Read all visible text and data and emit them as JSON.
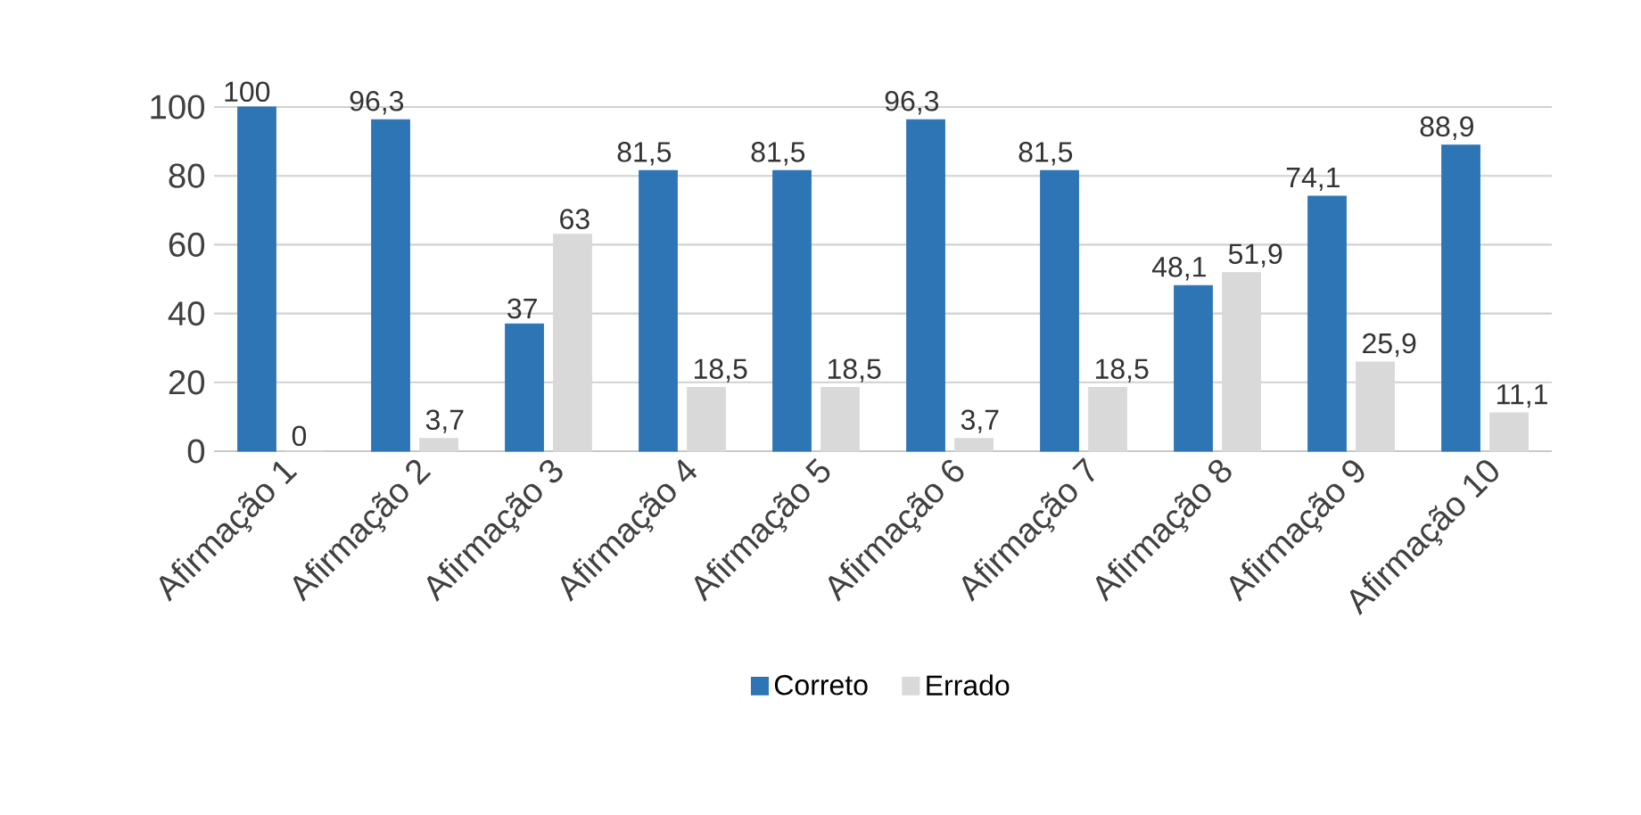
{
  "chart_data": {
    "type": "bar",
    "categories": [
      "Afirmação 1",
      "Afirmação 2",
      "Afirmação 3",
      "Afirmação 4",
      "Afirmação 5",
      "Afirmação 6",
      "Afirmação 7",
      "Afirmação 8",
      "Afirmação 9",
      "Afirmação 10"
    ],
    "series": [
      {
        "name": "Correto",
        "color": "#2e75b6",
        "values": [
          100,
          96.3,
          37,
          81.5,
          81.5,
          96.3,
          81.5,
          48.1,
          74.1,
          88.9
        ],
        "value_labels": [
          "100",
          "96,3",
          "37",
          "81,5",
          "81,5",
          "96,3",
          "81,5",
          "48,1",
          "74,1",
          "88,9"
        ]
      },
      {
        "name": "Errado",
        "color": "#d9d9d9",
        "values": [
          0,
          3.7,
          63,
          18.5,
          18.5,
          3.7,
          18.5,
          51.9,
          25.9,
          11.1
        ],
        "value_labels": [
          "0",
          "3,7",
          "63",
          "18,5",
          "18,5",
          "3,7",
          "18,5",
          "51,9",
          "25,9",
          "11,1"
        ]
      }
    ],
    "ylim": [
      0,
      100
    ],
    "yticks": [
      0,
      20,
      40,
      60,
      80,
      100
    ],
    "grid": "y",
    "legend": "bottom"
  }
}
